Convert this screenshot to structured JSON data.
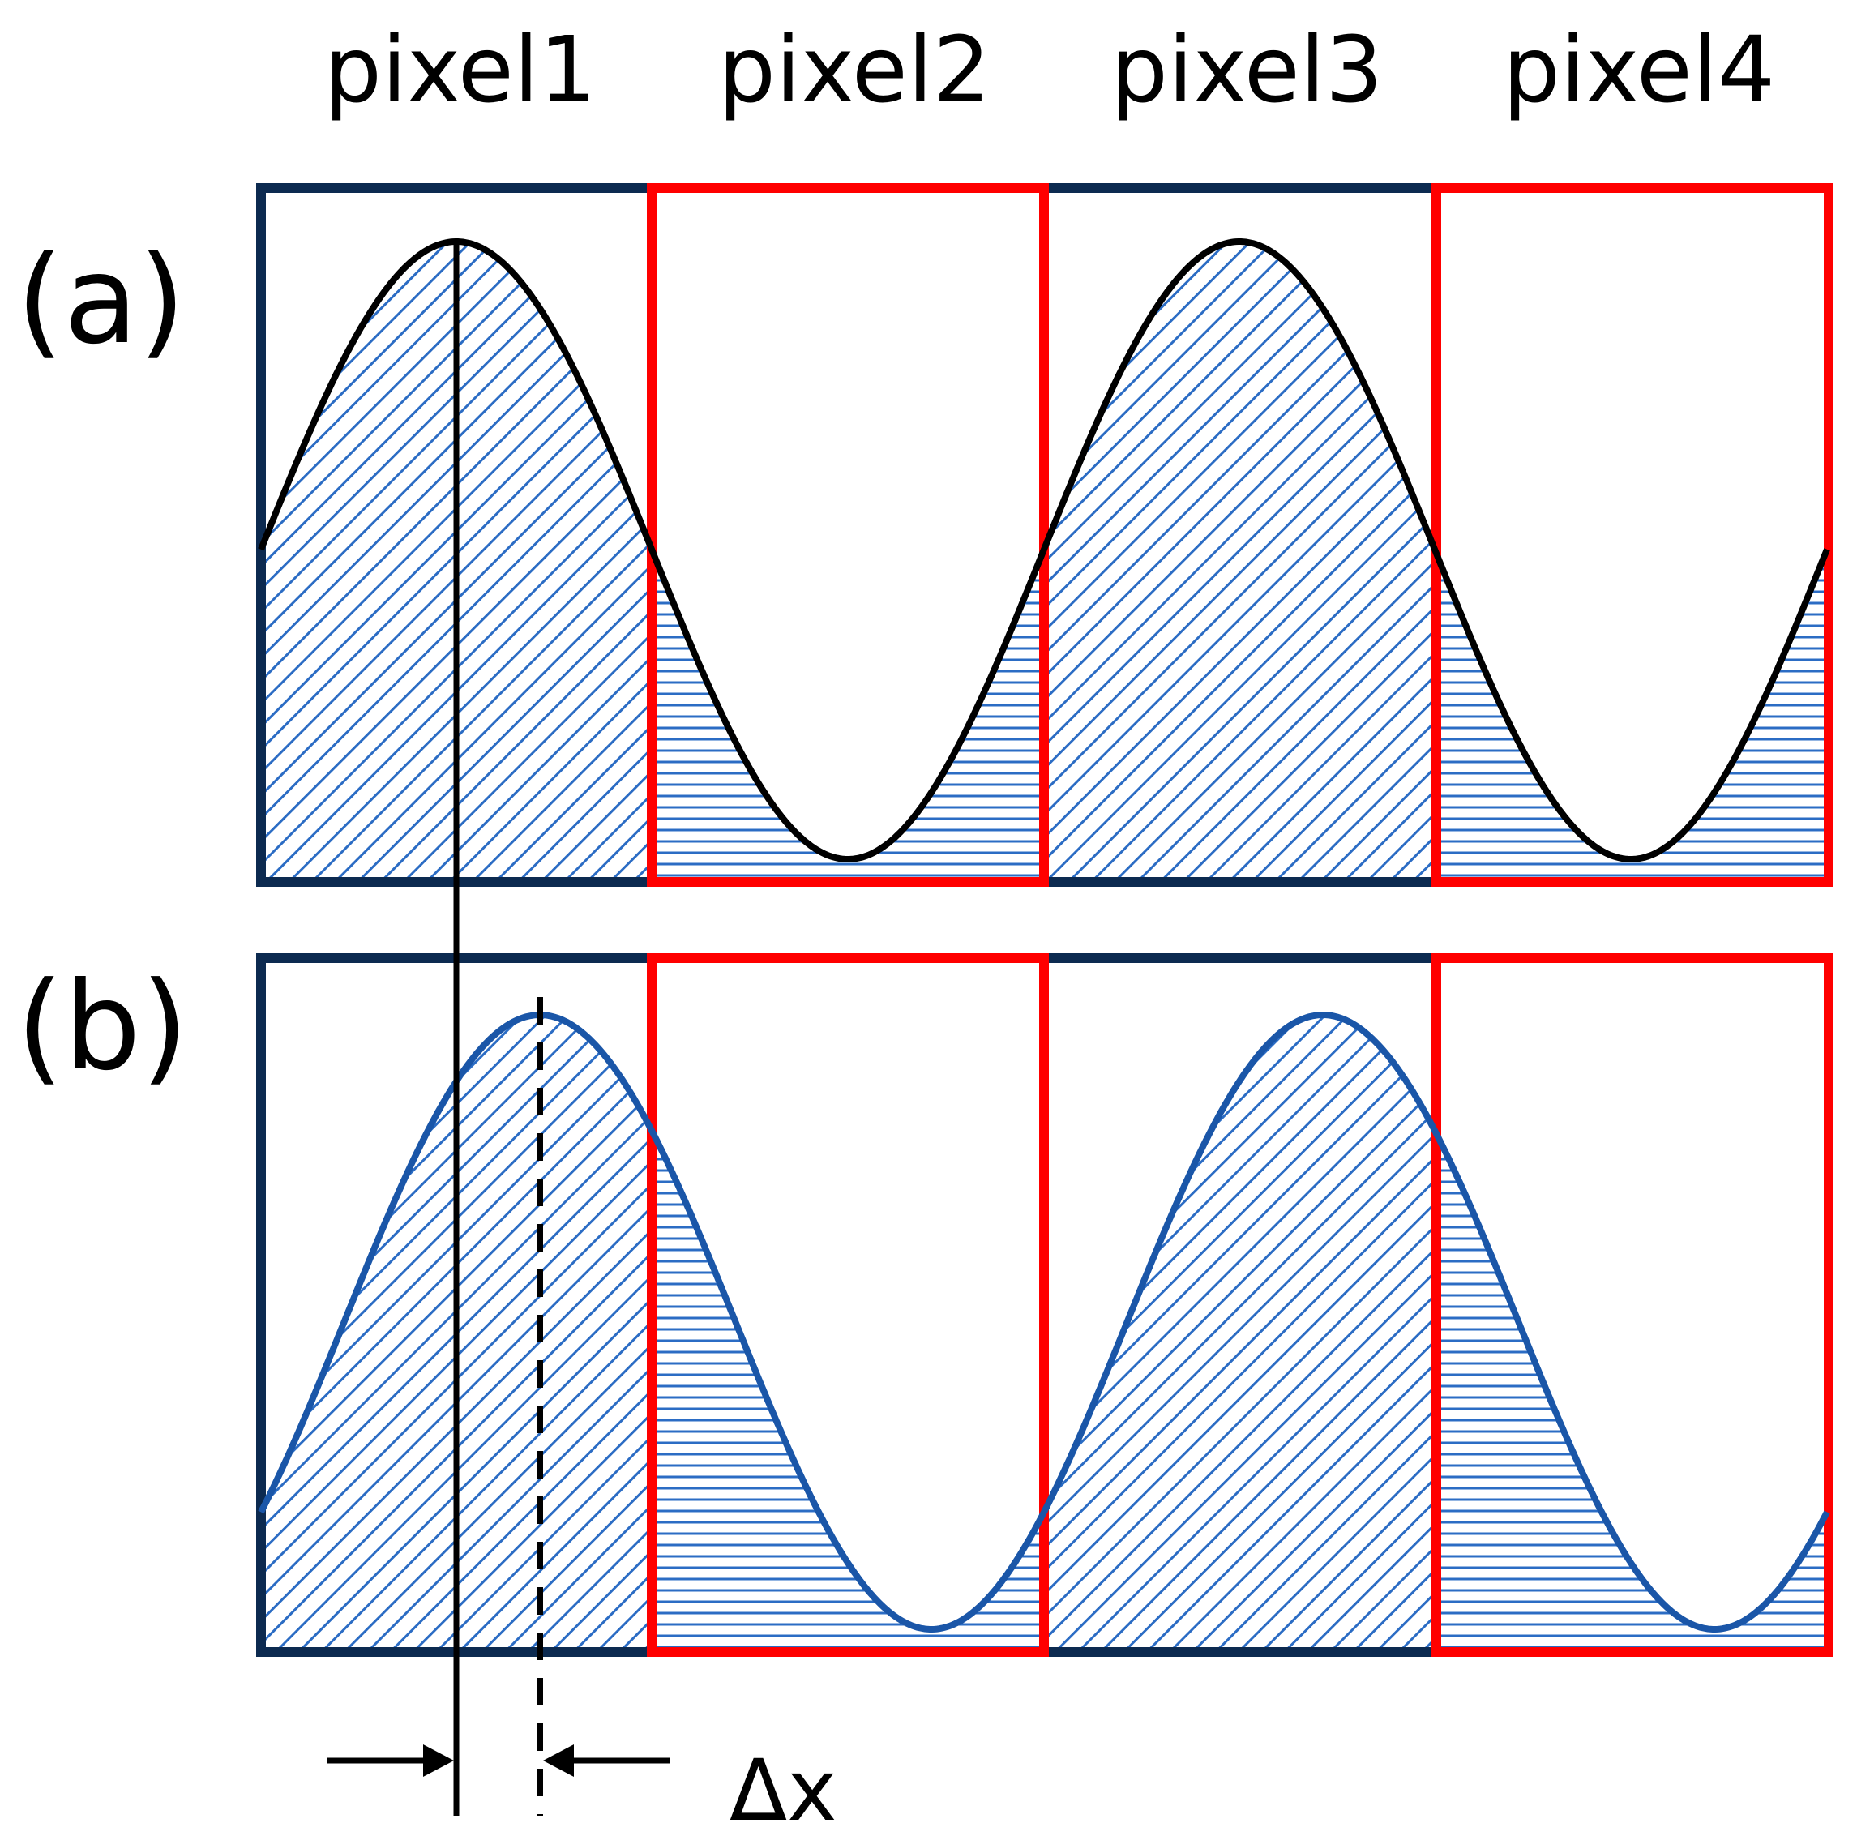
{
  "pixel_labels": [
    "pixel1",
    "pixel2",
    "pixel3",
    "pixel4"
  ],
  "panels": [
    {
      "label": "(a)",
      "curve_color": "#000000"
    },
    {
      "label": "(b)",
      "curve_color": "#1a56a8"
    }
  ],
  "shift_label": "Δx",
  "colors": {
    "odd_pixel_frame": "#0c2a50",
    "even_pixel_frame": "#ff0000",
    "hatch": "#2b6cc4",
    "reference_line": "#000000"
  }
}
